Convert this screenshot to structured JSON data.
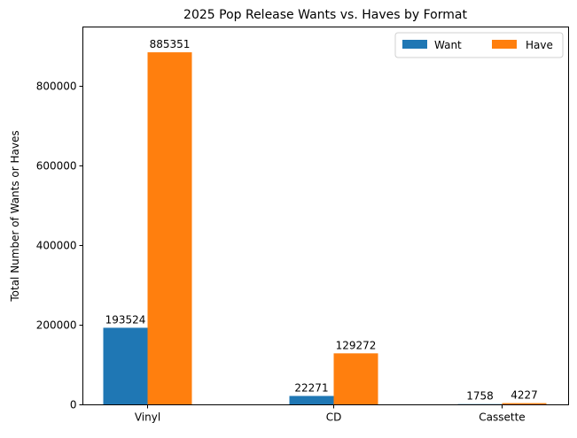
{
  "chart_data": {
    "type": "bar",
    "title": "2025 Pop Release Wants vs. Haves by Format",
    "xlabel": "",
    "ylabel": "Total Number of Wants or Haves",
    "categories": [
      "Vinyl",
      "CD",
      "Cassette"
    ],
    "series": [
      {
        "name": "Want",
        "color": "#1f77b4",
        "values": [
          193524,
          22271,
          1758
        ]
      },
      {
        "name": "Have",
        "color": "#ff7f0e",
        "values": [
          885351,
          129272,
          4227
        ]
      }
    ],
    "ylim": [
      0,
      948900
    ],
    "yticks": [
      0,
      200000,
      400000,
      600000,
      800000
    ],
    "ytick_labels": [
      "0",
      "200000",
      "400000",
      "600000",
      "800000"
    ],
    "grid": false,
    "legend_position": "upper right",
    "bar_labels": true
  }
}
